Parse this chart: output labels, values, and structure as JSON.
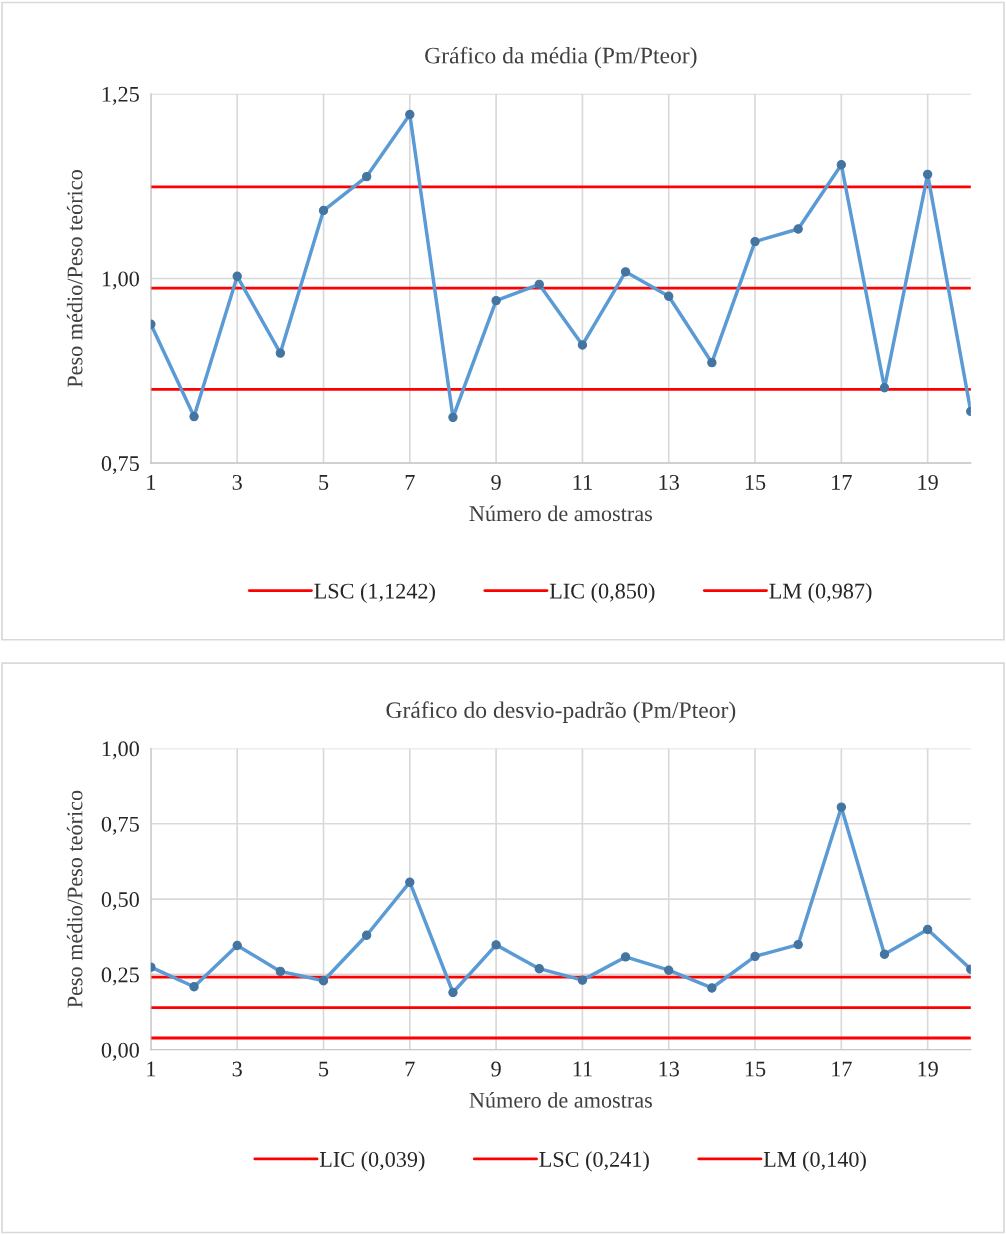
{
  "chart_data": [
    {
      "type": "line",
      "title": "Gráfico da média (Pm/Pteor)",
      "xlabel": "Número de amostras",
      "ylabel": "Peso médio/Peso teórico",
      "x": [
        1,
        2,
        3,
        4,
        5,
        6,
        7,
        8,
        9,
        10,
        11,
        12,
        13,
        14,
        15,
        16,
        17,
        18,
        19,
        20
      ],
      "series": [
        {
          "color": "#5b9bd5",
          "values": [
            0.938,
            0.813,
            1.003,
            0.899,
            1.092,
            1.138,
            1.222,
            0.812,
            0.97,
            0.992,
            0.91,
            1.009,
            0.976,
            0.886,
            1.05,
            1.067,
            1.154,
            0.852,
            1.141,
            0.82
          ]
        }
      ],
      "xlim": [
        1,
        20
      ],
      "xticks": [
        1,
        3,
        5,
        7,
        9,
        11,
        13,
        15,
        17,
        19
      ],
      "ylim": [
        0.75,
        1.25
      ],
      "yticks": [
        {
          "value": 0.75,
          "label": "0,75"
        },
        {
          "value": 1.0,
          "label": "1,00"
        },
        {
          "value": 1.25,
          "label": "1,25"
        }
      ],
      "ref_lines": [
        {
          "axis": "y",
          "value": 1.1242,
          "label": "LSC (1,1242)",
          "color": "#ff0000"
        },
        {
          "axis": "y",
          "value": 0.85,
          "label": "LIC (0,850)",
          "color": "#ff0000"
        },
        {
          "axis": "y",
          "value": 0.987,
          "label": "LM (0,987)",
          "color": "#ff0000"
        }
      ],
      "grid": true,
      "legend": "bottom",
      "marker": "circle",
      "line_style": "solid"
    },
    {
      "type": "line",
      "title": "Gráfico do desvio-padrão (Pm/Pteor)",
      "xlabel": "Número de amostras",
      "ylabel": "Peso médio/Peso teórico",
      "x": [
        1,
        2,
        3,
        4,
        5,
        6,
        7,
        8,
        9,
        10,
        11,
        12,
        13,
        14,
        15,
        16,
        17,
        18,
        19,
        20
      ],
      "series": [
        {
          "color": "#5b9bd5",
          "values": [
            0.274,
            0.209,
            0.346,
            0.26,
            0.229,
            0.38,
            0.556,
            0.19,
            0.348,
            0.269,
            0.231,
            0.308,
            0.264,
            0.205,
            0.31,
            0.349,
            0.805,
            0.317,
            0.399,
            0.267
          ]
        }
      ],
      "xlim": [
        1,
        20
      ],
      "xticks": [
        1,
        3,
        5,
        7,
        9,
        11,
        13,
        15,
        17,
        19
      ],
      "ylim": [
        0,
        1.0
      ],
      "yticks": [
        {
          "value": 0,
          "label": "0,00"
        },
        {
          "value": 0.25,
          "label": "0,25"
        },
        {
          "value": 0.5,
          "label": "0,50"
        },
        {
          "value": 0.75,
          "label": "0,75"
        },
        {
          "value": 1.0,
          "label": "1,00"
        }
      ],
      "ref_lines": [
        {
          "axis": "y",
          "value": 0.039,
          "label": "LIC (0,039)",
          "color": "#ff0000"
        },
        {
          "axis": "y",
          "value": 0.241,
          "label": "LSC (0,241)",
          "color": "#ff0000"
        },
        {
          "axis": "y",
          "value": 0.14,
          "label": "LM (0,140)",
          "color": "#ff0000"
        }
      ],
      "grid": true,
      "legend": "bottom",
      "marker": "circle",
      "line_style": "solid"
    }
  ]
}
